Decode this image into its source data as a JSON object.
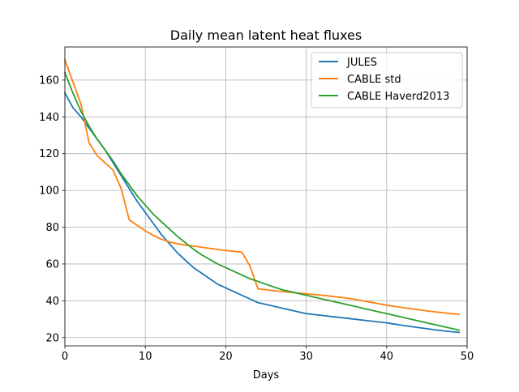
{
  "chart_data": {
    "type": "line",
    "title": "Daily mean latent heat fluxes",
    "xlabel": "Days",
    "ylabel": "",
    "xlim": [
      0,
      50
    ],
    "ylim": [
      15.5,
      178
    ],
    "xticks": [
      0,
      10,
      20,
      30,
      40,
      50
    ],
    "yticks": [
      20,
      40,
      60,
      80,
      100,
      120,
      140,
      160
    ],
    "xtick_labels": [
      "0",
      "10",
      "20",
      "30",
      "40",
      "50"
    ],
    "ytick_labels": [
      "20",
      "40",
      "60",
      "80",
      "100",
      "120",
      "140",
      "160"
    ],
    "grid": true,
    "legend_position": "top-right",
    "x": [
      0,
      1,
      2,
      3,
      4,
      5,
      6,
      7,
      8,
      9,
      10,
      11,
      12,
      13,
      14,
      15,
      16,
      17,
      18,
      19,
      20,
      21,
      22,
      23,
      24,
      25,
      26,
      27,
      28,
      29,
      30,
      31,
      32,
      33,
      34,
      35,
      36,
      37,
      38,
      39,
      40,
      41,
      42,
      43,
      44,
      45,
      46,
      47,
      48,
      49
    ],
    "series": [
      {
        "name": "JULES",
        "color": "#1f77b4",
        "values": [
          153,
          145,
          140,
          134,
          128,
          122,
          115,
          108,
          101,
          94,
          88,
          82,
          76,
          71,
          66,
          62,
          58,
          55,
          52,
          49,
          47,
          45,
          43,
          41,
          39,
          38,
          37,
          36,
          35,
          34,
          33,
          32.5,
          32,
          31.5,
          31,
          30.5,
          30,
          29.5,
          29,
          28.5,
          28,
          27.3,
          26.6,
          26,
          25.4,
          24.8,
          24.2,
          23.7,
          23.2,
          22.8
        ]
      },
      {
        "name": "CABLE std",
        "color": "#ff7f0e",
        "values": [
          171,
          159,
          147,
          126,
          119,
          115,
          111,
          101,
          84,
          81,
          78,
          75.5,
          73.5,
          72,
          71,
          70.3,
          69.7,
          69.1,
          68.5,
          67.9,
          67.3,
          66.9,
          66.4,
          59,
          46.5,
          46,
          45.5,
          45,
          44.6,
          44.2,
          43.8,
          43.4,
          43,
          42.5,
          42,
          41.5,
          40.8,
          40,
          39.2,
          38.4,
          37.6,
          36.9,
          36.3,
          35.7,
          35.1,
          34.5,
          34,
          33.5,
          33,
          32.6
        ]
      },
      {
        "name": "CABLE Haverd2013",
        "color": "#2ca02c",
        "values": [
          164,
          153,
          143,
          135,
          128,
          122,
          116,
          109,
          103,
          97,
          92,
          87,
          83,
          79,
          75,
          71.5,
          68,
          65,
          62.5,
          60,
          58,
          56,
          54,
          52,
          50.5,
          49,
          47.5,
          46,
          45,
          44,
          43,
          42,
          41,
          40,
          39,
          38,
          37,
          36,
          35,
          34,
          33,
          32,
          31,
          30,
          29,
          28,
          27,
          26,
          25,
          24
        ]
      }
    ]
  }
}
